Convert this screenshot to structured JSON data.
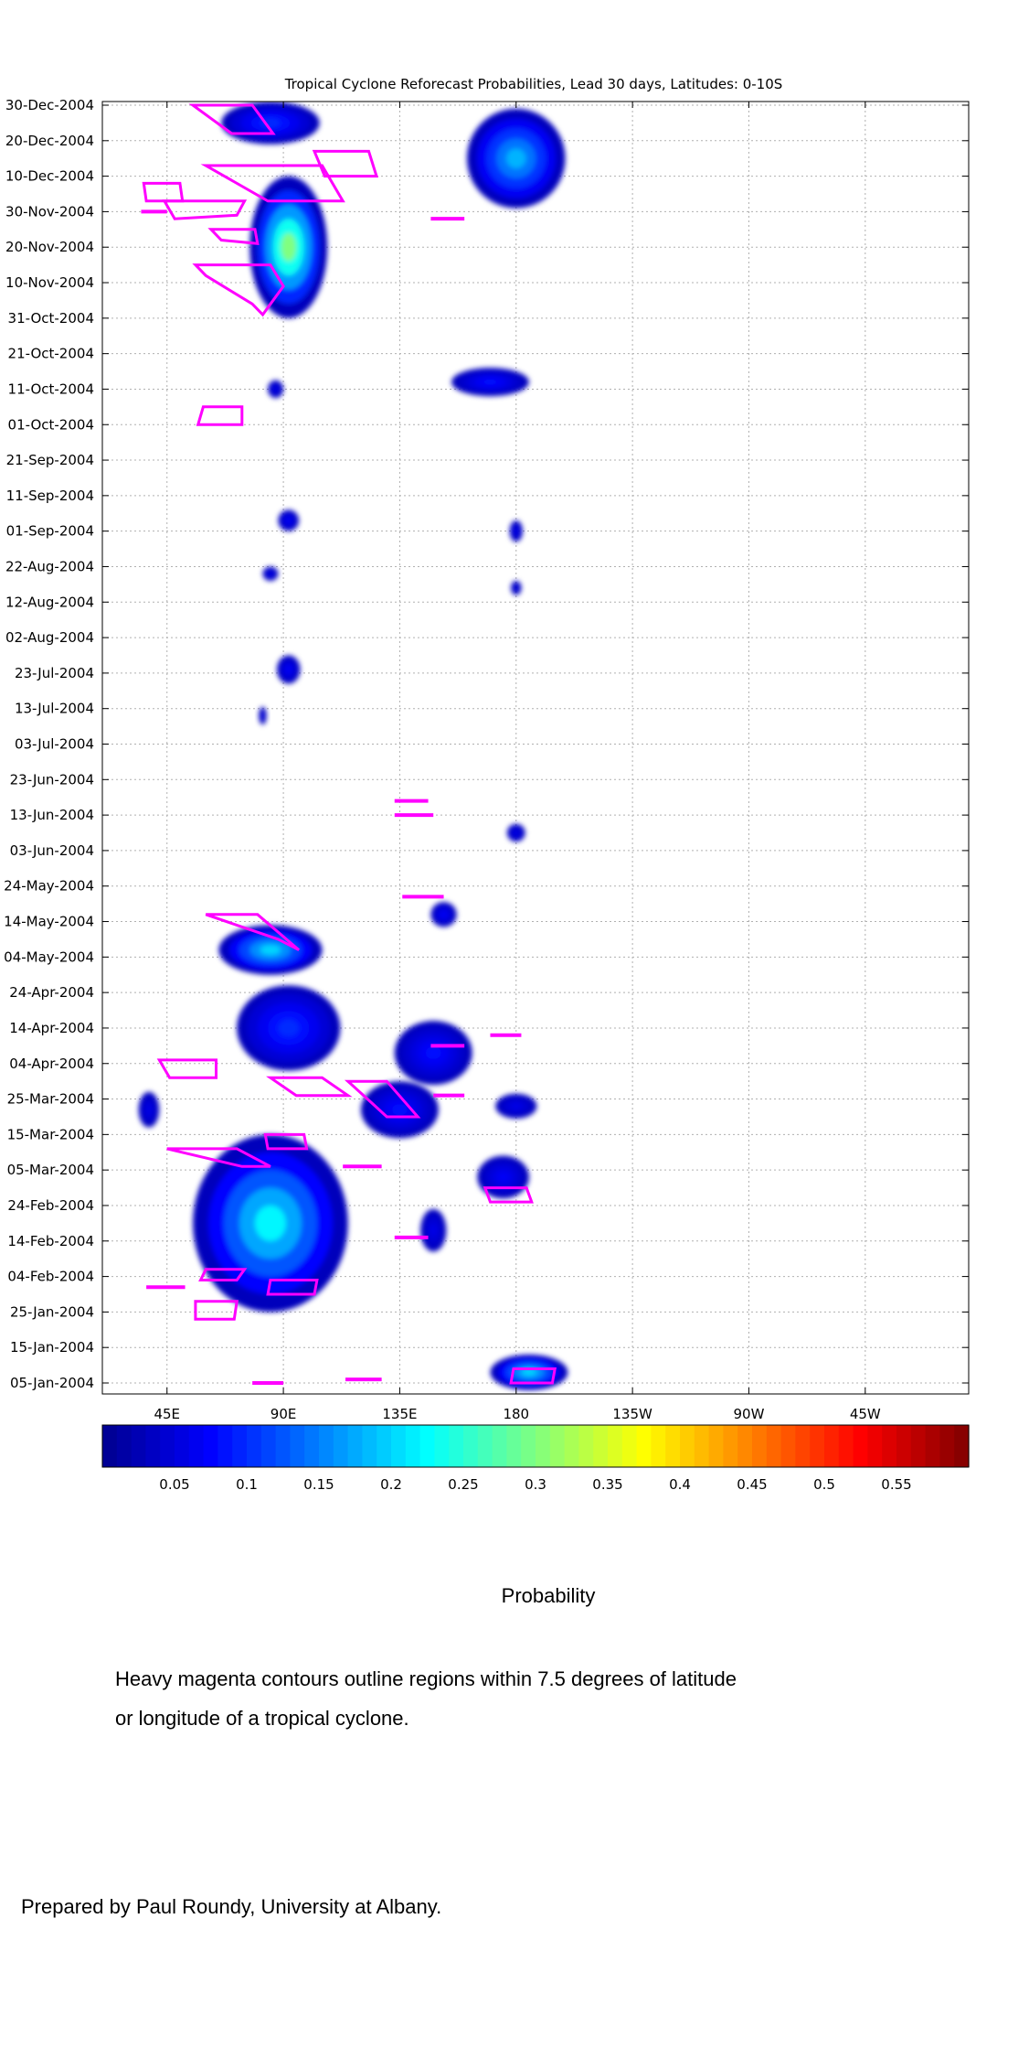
{
  "chart_data": {
    "type": "heatmap",
    "title": "Tropical Cyclone Reforecast Probabilities, Lead 30 days, Latitudes: 0-10S",
    "xlabel": "",
    "ylabel": "",
    "x_tick_labels": [
      "45E",
      "90E",
      "135E",
      "180",
      "135W",
      "90W",
      "45W"
    ],
    "x_range_deg_east": [
      20,
      355
    ],
    "y_tick_labels": [
      "30-Dec-2004",
      "20-Dec-2004",
      "10-Dec-2004",
      "30-Nov-2004",
      "20-Nov-2004",
      "10-Nov-2004",
      "31-Oct-2004",
      "21-Oct-2004",
      "11-Oct-2004",
      "01-Oct-2004",
      "21-Sep-2004",
      "11-Sep-2004",
      "01-Sep-2004",
      "22-Aug-2004",
      "12-Aug-2004",
      "02-Aug-2004",
      "23-Jul-2004",
      "13-Jul-2004",
      "03-Jul-2004",
      "23-Jun-2004",
      "13-Jun-2004",
      "03-Jun-2004",
      "24-May-2004",
      "14-May-2004",
      "04-May-2004",
      "24-Apr-2004",
      "14-Apr-2004",
      "04-Apr-2004",
      "25-Mar-2004",
      "15-Mar-2004",
      "05-Mar-2004",
      "24-Feb-2004",
      "14-Feb-2004",
      "04-Feb-2004",
      "25-Jan-2004",
      "15-Jan-2004",
      "05-Jan-2004"
    ],
    "y_range_days": [
      0,
      365
    ],
    "grid": true,
    "colorbar": {
      "tick_labels": [
        "0.05",
        "0.1",
        "0.15",
        "0.2",
        "0.25",
        "0.3",
        "0.35",
        "0.4",
        "0.45",
        "0.5",
        "0.55"
      ],
      "range": [
        0,
        0.6
      ],
      "colors": [
        "#00008f",
        "#0000ff",
        "#0080ff",
        "#00ffff",
        "#80ff80",
        "#ffff00",
        "#ff8000",
        "#ff0000",
        "#800000"
      ]
    },
    "probability_regions": [
      {
        "lon": 92,
        "days": 320,
        "lon_width": 30,
        "days_width": 40,
        "peak": 0.3
      },
      {
        "lon": 85,
        "days": 355,
        "lon_width": 38,
        "days_width": 12,
        "peak": 0.1
      },
      {
        "lon": 180,
        "days": 345,
        "lon_width": 38,
        "days_width": 28,
        "peak": 0.18
      },
      {
        "lon": 170,
        "days": 282,
        "lon_width": 30,
        "days_width": 8,
        "peak": 0.08
      },
      {
        "lon": 87,
        "days": 280,
        "lon_width": 6,
        "days_width": 5,
        "peak": 0.06
      },
      {
        "lon": 92,
        "days": 243,
        "lon_width": 8,
        "days_width": 6,
        "peak": 0.07
      },
      {
        "lon": 180,
        "days": 240,
        "lon_width": 5,
        "days_width": 6,
        "peak": 0.06
      },
      {
        "lon": 85,
        "days": 228,
        "lon_width": 6,
        "days_width": 4,
        "peak": 0.06
      },
      {
        "lon": 180,
        "days": 224,
        "lon_width": 4,
        "days_width": 4,
        "peak": 0.05
      },
      {
        "lon": 92,
        "days": 201,
        "lon_width": 9,
        "days_width": 8,
        "peak": 0.07
      },
      {
        "lon": 82,
        "days": 188,
        "lon_width": 3,
        "days_width": 5,
        "peak": 0.05
      },
      {
        "lon": 180,
        "days": 155,
        "lon_width": 7,
        "days_width": 5,
        "peak": 0.06
      },
      {
        "lon": 152,
        "days": 132,
        "lon_width": 10,
        "days_width": 7,
        "peak": 0.07
      },
      {
        "lon": 85,
        "days": 122,
        "lon_width": 40,
        "days_width": 14,
        "peak": 0.2
      },
      {
        "lon": 92,
        "days": 100,
        "lon_width": 40,
        "days_width": 24,
        "peak": 0.1
      },
      {
        "lon": 148,
        "days": 93,
        "lon_width": 30,
        "days_width": 18,
        "peak": 0.08
      },
      {
        "lon": 135,
        "days": 77,
        "lon_width": 30,
        "days_width": 16,
        "peak": 0.08
      },
      {
        "lon": 180,
        "days": 78,
        "lon_width": 16,
        "days_width": 7,
        "peak": 0.06
      },
      {
        "lon": 85,
        "days": 45,
        "lon_width": 60,
        "days_width": 50,
        "peak": 0.22
      },
      {
        "lon": 175,
        "days": 58,
        "lon_width": 20,
        "days_width": 12,
        "peak": 0.07
      },
      {
        "lon": 148,
        "days": 43,
        "lon_width": 10,
        "days_width": 12,
        "peak": 0.06
      },
      {
        "lon": 185,
        "days": 3,
        "lon_width": 30,
        "days_width": 10,
        "peak": 0.2
      },
      {
        "lon": 38,
        "days": 77,
        "lon_width": 8,
        "days_width": 10,
        "peak": 0.06
      }
    ],
    "cyclone_contours": [
      {
        "lon": [
          55,
          78,
          86,
          70
        ],
        "days": [
          360,
          360,
          352,
          352
        ]
      },
      {
        "lon": [
          102,
          123,
          126,
          106
        ],
        "days": [
          347,
          347,
          340,
          340
        ]
      },
      {
        "lon": [
          60,
          105,
          113,
          84
        ],
        "days": [
          343,
          343,
          333,
          333
        ]
      },
      {
        "lon": [
          36,
          50,
          51,
          37
        ],
        "days": [
          338,
          338,
          333,
          333
        ]
      },
      {
        "lon": [
          44,
          75,
          72,
          48
        ],
        "days": [
          333,
          333,
          329,
          328
        ]
      },
      {
        "lon": [
          62,
          79,
          80,
          66
        ],
        "days": [
          325,
          325,
          321,
          322
        ]
      },
      {
        "lon": [
          56,
          85,
          90,
          82,
          78,
          60
        ],
        "days": [
          315,
          315,
          309,
          301,
          304,
          312
        ]
      },
      {
        "lon": [
          59,
          74,
          74,
          57
        ],
        "days": [
          275,
          275,
          270,
          270
        ]
      },
      {
        "lon": [
          60,
          80,
          96,
          88
        ],
        "days": [
          132,
          132,
          122,
          125
        ]
      },
      {
        "lon": [
          42,
          64,
          64,
          46
        ],
        "days": [
          91,
          91,
          86,
          86
        ]
      },
      {
        "lon": [
          85,
          105,
          115,
          95
        ],
        "days": [
          86,
          86,
          81,
          81
        ]
      },
      {
        "lon": [
          115,
          130,
          142,
          130,
          124
        ],
        "days": [
          85,
          85,
          75,
          75,
          79
        ]
      },
      {
        "lon": [
          83,
          98,
          99,
          84
        ],
        "days": [
          70,
          70,
          66,
          66
        ]
      },
      {
        "lon": [
          45,
          72,
          85,
          74
        ],
        "days": [
          66,
          66,
          61,
          61
        ]
      },
      {
        "lon": [
          168,
          184,
          186,
          170
        ],
        "days": [
          55,
          55,
          51,
          51
        ]
      },
      {
        "lon": [
          60,
          75,
          72,
          58
        ],
        "days": [
          32,
          32,
          29,
          29
        ]
      },
      {
        "lon": [
          85,
          103,
          102,
          84
        ],
        "days": [
          29,
          29,
          25,
          25
        ]
      },
      {
        "lon": [
          56,
          72,
          71,
          56
        ],
        "days": [
          23,
          23,
          18,
          18
        ]
      },
      {
        "lon": [
          179,
          195,
          194,
          178
        ],
        "days": [
          4,
          4,
          0,
          0
        ]
      }
    ],
    "cyclone_segments": [
      {
        "lon": [
          35,
          45
        ],
        "days": 330
      },
      {
        "lon": [
          147,
          160
        ],
        "days": 328
      },
      {
        "lon": [
          133,
          146
        ],
        "days": 164
      },
      {
        "lon": [
          133,
          148
        ],
        "days": 160
      },
      {
        "lon": [
          136,
          152
        ],
        "days": 137
      },
      {
        "lon": [
          170,
          182
        ],
        "days": 98
      },
      {
        "lon": [
          147,
          160
        ],
        "days": 95
      },
      {
        "lon": [
          148,
          160
        ],
        "days": 81
      },
      {
        "lon": [
          113,
          128
        ],
        "days": 61
      },
      {
        "lon": [
          133,
          146
        ],
        "days": 41
      },
      {
        "lon": [
          37,
          52
        ],
        "days": 27
      },
      {
        "lon": [
          114,
          128
        ],
        "days": 1
      },
      {
        "lon": [
          78,
          90
        ],
        "days": 0
      }
    ]
  },
  "colorbar_title": "Probability",
  "note_line1": "Heavy magenta contours outline regions within 7.5 degrees of latitude",
  "note_line2": "or longitude of a tropical cyclone.",
  "credit": "Prepared by Paul Roundy, University at Albany.",
  "colors": {
    "contour": "#ff00ff",
    "grid": "#b0b0b0",
    "axes": "#000000"
  }
}
